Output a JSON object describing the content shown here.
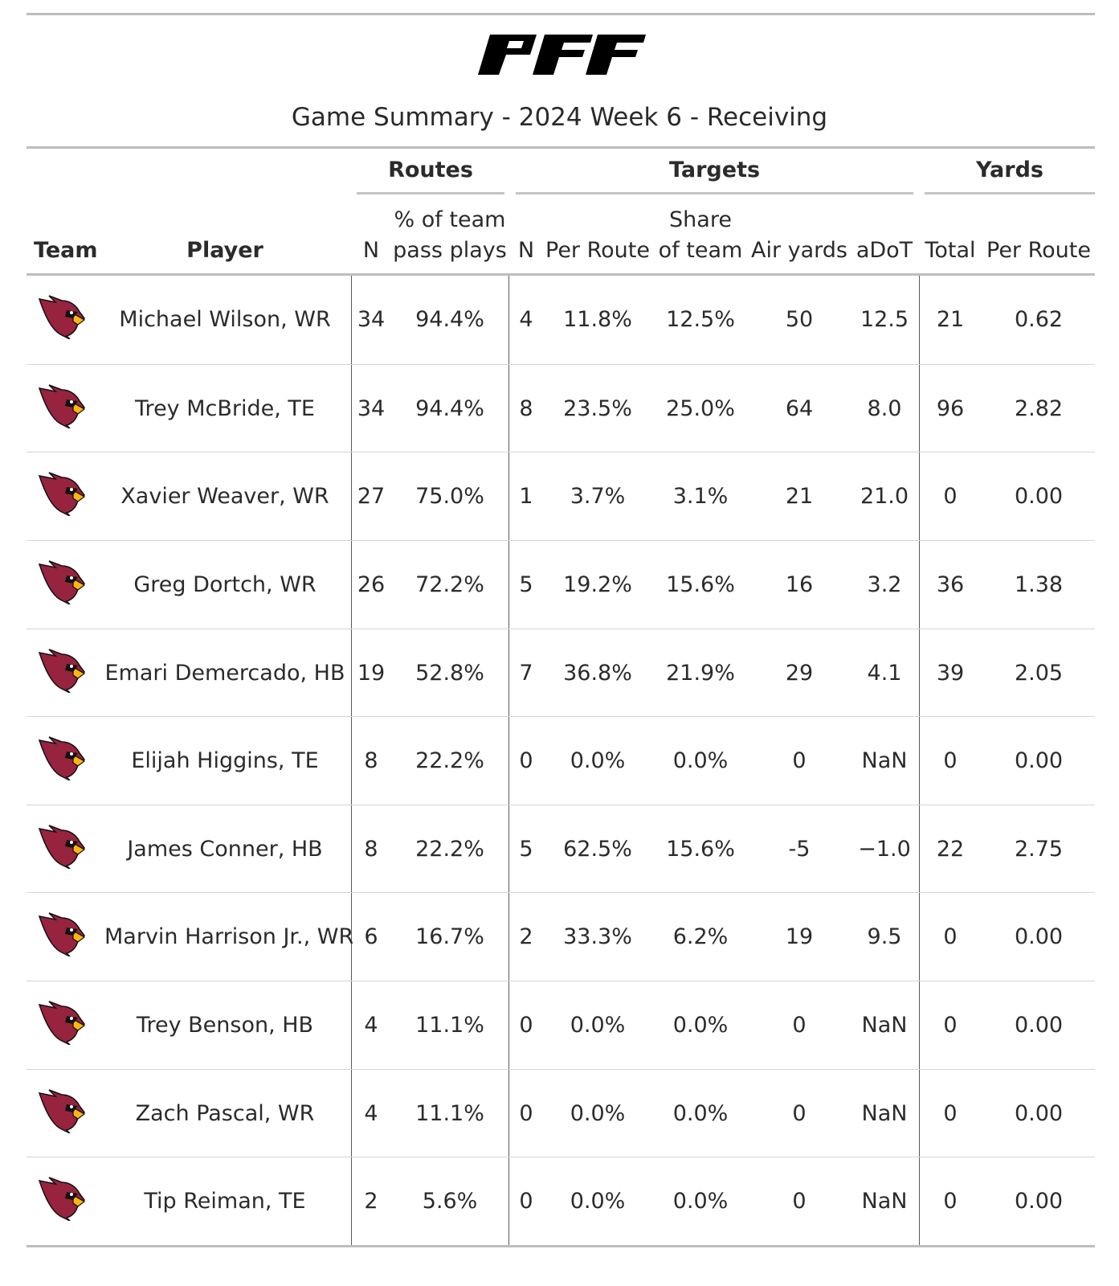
{
  "brand": "PFF",
  "title": "Game Summary - 2024 Week 6 - Receiving",
  "headers": {
    "team": "Team",
    "player": "Player",
    "groups": {
      "routes": "Routes",
      "targets": "Targets",
      "yards": "Yards"
    },
    "routes_n": "N",
    "routes_pct_line1": "% of team",
    "routes_pct_line2": "pass plays",
    "targets_n": "N",
    "targets_per_route": "Per Route",
    "targets_share_line1": "Share",
    "targets_share_line2": "of team",
    "air_yards": "Air yards",
    "adot": "aDoT",
    "yards_total": "Total",
    "yards_per_route": "Per Route"
  },
  "team_icon": "arizona-cardinals-logo",
  "colors": {
    "cardinal_red": "#97233F",
    "beak_yellow": "#FFB612",
    "rule_gray": "#bdbdbd"
  },
  "chart_data": {
    "type": "table",
    "title": "Game Summary - 2024 Week 6 - Receiving",
    "columns": [
      "Team",
      "Player",
      "Routes N",
      "Routes % of team pass plays",
      "Targets N",
      "Targets Per Route",
      "Targets Share of team",
      "Air yards",
      "aDoT",
      "Yards Total",
      "Yards Per Route"
    ],
    "rows": [
      {
        "player": "Michael Wilson, WR",
        "routes_n": "34",
        "routes_pct": "94.4%",
        "targets_n": "4",
        "targets_per_route": "11.8%",
        "share": "12.5%",
        "air_yards": "50",
        "adot": "12.5",
        "yards_total": "21",
        "yards_per_route": "0.62"
      },
      {
        "player": "Trey McBride, TE",
        "routes_n": "34",
        "routes_pct": "94.4%",
        "targets_n": "8",
        "targets_per_route": "23.5%",
        "share": "25.0%",
        "air_yards": "64",
        "adot": "8.0",
        "yards_total": "96",
        "yards_per_route": "2.82"
      },
      {
        "player": "Xavier Weaver, WR",
        "routes_n": "27",
        "routes_pct": "75.0%",
        "targets_n": "1",
        "targets_per_route": "3.7%",
        "share": "3.1%",
        "air_yards": "21",
        "adot": "21.0",
        "yards_total": "0",
        "yards_per_route": "0.00"
      },
      {
        "player": "Greg Dortch, WR",
        "routes_n": "26",
        "routes_pct": "72.2%",
        "targets_n": "5",
        "targets_per_route": "19.2%",
        "share": "15.6%",
        "air_yards": "16",
        "adot": "3.2",
        "yards_total": "36",
        "yards_per_route": "1.38"
      },
      {
        "player": "Emari Demercado, HB",
        "routes_n": "19",
        "routes_pct": "52.8%",
        "targets_n": "7",
        "targets_per_route": "36.8%",
        "share": "21.9%",
        "air_yards": "29",
        "adot": "4.1",
        "yards_total": "39",
        "yards_per_route": "2.05"
      },
      {
        "player": "Elijah Higgins, TE",
        "routes_n": "8",
        "routes_pct": "22.2%",
        "targets_n": "0",
        "targets_per_route": "0.0%",
        "share": "0.0%",
        "air_yards": "0",
        "adot": "NaN",
        "yards_total": "0",
        "yards_per_route": "0.00"
      },
      {
        "player": "James Conner, HB",
        "routes_n": "8",
        "routes_pct": "22.2%",
        "targets_n": "5",
        "targets_per_route": "62.5%",
        "share": "15.6%",
        "air_yards": "-5",
        "adot": "−1.0",
        "yards_total": "22",
        "yards_per_route": "2.75"
      },
      {
        "player": "Marvin Harrison Jr., WR",
        "routes_n": "6",
        "routes_pct": "16.7%",
        "targets_n": "2",
        "targets_per_route": "33.3%",
        "share": "6.2%",
        "air_yards": "19",
        "adot": "9.5",
        "yards_total": "0",
        "yards_per_route": "0.00"
      },
      {
        "player": "Trey Benson, HB",
        "routes_n": "4",
        "routes_pct": "11.1%",
        "targets_n": "0",
        "targets_per_route": "0.0%",
        "share": "0.0%",
        "air_yards": "0",
        "adot": "NaN",
        "yards_total": "0",
        "yards_per_route": "0.00"
      },
      {
        "player": "Zach Pascal, WR",
        "routes_n": "4",
        "routes_pct": "11.1%",
        "targets_n": "0",
        "targets_per_route": "0.0%",
        "share": "0.0%",
        "air_yards": "0",
        "adot": "NaN",
        "yards_total": "0",
        "yards_per_route": "0.00"
      },
      {
        "player": "Tip Reiman, TE",
        "routes_n": "2",
        "routes_pct": "5.6%",
        "targets_n": "0",
        "targets_per_route": "0.0%",
        "share": "0.0%",
        "air_yards": "0",
        "adot": "NaN",
        "yards_total": "0",
        "yards_per_route": "0.00"
      }
    ]
  }
}
